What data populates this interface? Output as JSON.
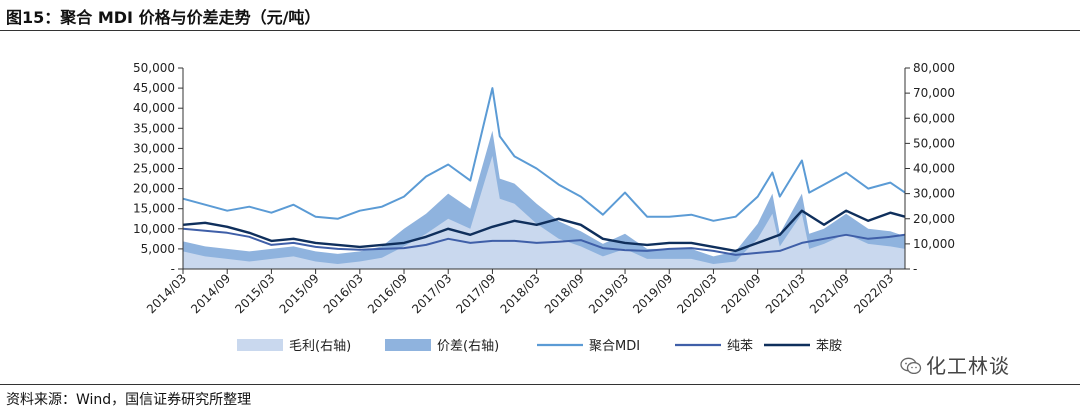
{
  "figure": {
    "title": "图15：聚合 MDI 价格与价差走势（元/吨）",
    "source": "资料来源：Wind，国信证券研究所整理",
    "watermark": "化工林谈",
    "watermark_icon": "wechat-icon"
  },
  "chart_data": {
    "type": "line",
    "left_axis": {
      "ylim": [
        0,
        50000
      ],
      "ticks": [
        "-",
        "5,000",
        "10,000",
        "15,000",
        "20,000",
        "25,000",
        "30,000",
        "35,000",
        "40,000",
        "45,000",
        "50,000"
      ],
      "tick_values": [
        0,
        5000,
        10000,
        15000,
        20000,
        25000,
        30000,
        35000,
        40000,
        45000,
        50000
      ]
    },
    "right_axis": {
      "ylim": [
        0,
        80000
      ],
      "ticks": [
        "-",
        "10,000",
        "20,000",
        "30,000",
        "40,000",
        "50,000",
        "60,000",
        "70,000",
        "80,000"
      ],
      "tick_values": [
        0,
        10000,
        20000,
        30000,
        40000,
        50000,
        60000,
        70000,
        80000
      ]
    },
    "x_ticks": [
      "2014/03",
      "2014/09",
      "2015/03",
      "2015/09",
      "2016/03",
      "2016/09",
      "2017/03",
      "2017/09",
      "2018/03",
      "2018/09",
      "2019/03",
      "2019/09",
      "2020/03",
      "2020/09",
      "2021/03",
      "2021/09",
      "2022/03"
    ],
    "x_range": [
      "2014/03",
      "2022/05"
    ],
    "grid": false,
    "legend_position": "bottom",
    "colors": {
      "margin": "#c9d8ee",
      "spread": "#8fb3de",
      "mdi": "#5b9bd5",
      "benzene": "#3f5fa8",
      "aniline": "#0f2f5c"
    },
    "series": [
      {
        "name": "毛利(右轴)",
        "type": "area",
        "axis": "right",
        "points": [
          [
            "2014/03",
            7000
          ],
          [
            "2014/06",
            5000
          ],
          [
            "2014/09",
            4000
          ],
          [
            "2014/12",
            3000
          ],
          [
            "2015/03",
            4000
          ],
          [
            "2015/06",
            5000
          ],
          [
            "2015/09",
            3000
          ],
          [
            "2015/12",
            2000
          ],
          [
            "2016/03",
            3000
          ],
          [
            "2016/06",
            4500
          ],
          [
            "2016/09",
            9000
          ],
          [
            "2016/12",
            14000
          ],
          [
            "2017/03",
            20000
          ],
          [
            "2017/06",
            16000
          ],
          [
            "2017/09",
            45000
          ],
          [
            "2017/10",
            28000
          ],
          [
            "2017/12",
            26000
          ],
          [
            "2018/03",
            18000
          ],
          [
            "2018/06",
            12000
          ],
          [
            "2018/09",
            9000
          ],
          [
            "2018/12",
            5000
          ],
          [
            "2019/03",
            8000
          ],
          [
            "2019/06",
            4000
          ],
          [
            "2019/09",
            4000
          ],
          [
            "2019/12",
            4000
          ],
          [
            "2020/03",
            2000
          ],
          [
            "2020/06",
            3000
          ],
          [
            "2020/09",
            12000
          ],
          [
            "2020/11",
            22000
          ],
          [
            "2020/12",
            9000
          ],
          [
            "2021/03",
            22000
          ],
          [
            "2021/04",
            8000
          ],
          [
            "2021/06",
            10000
          ],
          [
            "2021/09",
            14000
          ],
          [
            "2021/12",
            10000
          ],
          [
            "2022/03",
            9000
          ],
          [
            "2022/05",
            8000
          ]
        ]
      },
      {
        "name": "价差(右轴)",
        "type": "area",
        "axis": "right",
        "points": [
          [
            "2014/03",
            11000
          ],
          [
            "2014/06",
            9000
          ],
          [
            "2014/09",
            8000
          ],
          [
            "2014/12",
            7000
          ],
          [
            "2015/03",
            8000
          ],
          [
            "2015/06",
            9000
          ],
          [
            "2015/09",
            7000
          ],
          [
            "2015/12",
            6000
          ],
          [
            "2016/03",
            7000
          ],
          [
            "2016/06",
            9000
          ],
          [
            "2016/09",
            16000
          ],
          [
            "2016/12",
            22000
          ],
          [
            "2017/03",
            30000
          ],
          [
            "2017/06",
            24000
          ],
          [
            "2017/09",
            55000
          ],
          [
            "2017/10",
            36000
          ],
          [
            "2017/12",
            34000
          ],
          [
            "2018/03",
            26000
          ],
          [
            "2018/06",
            19000
          ],
          [
            "2018/09",
            15000
          ],
          [
            "2018/12",
            10000
          ],
          [
            "2019/03",
            14000
          ],
          [
            "2019/06",
            8000
          ],
          [
            "2019/09",
            8000
          ],
          [
            "2019/12",
            8000
          ],
          [
            "2020/03",
            5000
          ],
          [
            "2020/06",
            7000
          ],
          [
            "2020/09",
            18000
          ],
          [
            "2020/11",
            30000
          ],
          [
            "2020/12",
            14000
          ],
          [
            "2021/03",
            30000
          ],
          [
            "2021/04",
            14000
          ],
          [
            "2021/06",
            16000
          ],
          [
            "2021/09",
            22000
          ],
          [
            "2021/12",
            16000
          ],
          [
            "2022/03",
            15000
          ],
          [
            "2022/05",
            13000
          ]
        ]
      },
      {
        "name": "聚合MDI",
        "type": "line",
        "axis": "left",
        "points": [
          [
            "2014/03",
            17500
          ],
          [
            "2014/06",
            16000
          ],
          [
            "2014/09",
            14500
          ],
          [
            "2014/12",
            15500
          ],
          [
            "2015/03",
            14000
          ],
          [
            "2015/06",
            16000
          ],
          [
            "2015/09",
            13000
          ],
          [
            "2015/12",
            12500
          ],
          [
            "2016/03",
            14500
          ],
          [
            "2016/06",
            15500
          ],
          [
            "2016/09",
            18000
          ],
          [
            "2016/12",
            23000
          ],
          [
            "2017/03",
            26000
          ],
          [
            "2017/06",
            22000
          ],
          [
            "2017/09",
            45000
          ],
          [
            "2017/10",
            33000
          ],
          [
            "2017/12",
            28000
          ],
          [
            "2018/03",
            25000
          ],
          [
            "2018/06",
            21000
          ],
          [
            "2018/09",
            18000
          ],
          [
            "2018/12",
            13500
          ],
          [
            "2019/03",
            19000
          ],
          [
            "2019/06",
            13000
          ],
          [
            "2019/09",
            13000
          ],
          [
            "2019/12",
            13500
          ],
          [
            "2020/03",
            12000
          ],
          [
            "2020/06",
            13000
          ],
          [
            "2020/09",
            18000
          ],
          [
            "2020/11",
            24000
          ],
          [
            "2020/12",
            18000
          ],
          [
            "2021/03",
            27000
          ],
          [
            "2021/04",
            19000
          ],
          [
            "2021/06",
            21000
          ],
          [
            "2021/09",
            24000
          ],
          [
            "2021/12",
            20000
          ],
          [
            "2022/03",
            21500
          ],
          [
            "2022/05",
            19000
          ]
        ]
      },
      {
        "name": "纯苯",
        "type": "line",
        "axis": "left",
        "points": [
          [
            "2014/03",
            10000
          ],
          [
            "2014/06",
            9500
          ],
          [
            "2014/09",
            9000
          ],
          [
            "2014/12",
            8000
          ],
          [
            "2015/03",
            6000
          ],
          [
            "2015/06",
            6500
          ],
          [
            "2015/09",
            5500
          ],
          [
            "2015/12",
            5000
          ],
          [
            "2016/03",
            4800
          ],
          [
            "2016/06",
            5000
          ],
          [
            "2016/09",
            5200
          ],
          [
            "2016/12",
            6000
          ],
          [
            "2017/03",
            7500
          ],
          [
            "2017/06",
            6500
          ],
          [
            "2017/09",
            7000
          ],
          [
            "2017/12",
            7000
          ],
          [
            "2018/03",
            6500
          ],
          [
            "2018/06",
            6800
          ],
          [
            "2018/09",
            7200
          ],
          [
            "2018/12",
            5200
          ],
          [
            "2019/03",
            4700
          ],
          [
            "2019/06",
            4500
          ],
          [
            "2019/09",
            5000
          ],
          [
            "2019/12",
            5200
          ],
          [
            "2020/03",
            4500
          ],
          [
            "2020/06",
            3500
          ],
          [
            "2020/09",
            4000
          ],
          [
            "2020/12",
            4500
          ],
          [
            "2021/03",
            6500
          ],
          [
            "2021/06",
            7500
          ],
          [
            "2021/09",
            8500
          ],
          [
            "2021/12",
            7500
          ],
          [
            "2022/03",
            8000
          ],
          [
            "2022/05",
            8500
          ]
        ]
      },
      {
        "name": "苯胺",
        "type": "line",
        "axis": "left",
        "points": [
          [
            "2014/03",
            11000
          ],
          [
            "2014/06",
            11500
          ],
          [
            "2014/09",
            10500
          ],
          [
            "2014/12",
            9000
          ],
          [
            "2015/03",
            7000
          ],
          [
            "2015/06",
            7500
          ],
          [
            "2015/09",
            6500
          ],
          [
            "2015/12",
            6000
          ],
          [
            "2016/03",
            5500
          ],
          [
            "2016/06",
            6000
          ],
          [
            "2016/09",
            6500
          ],
          [
            "2016/12",
            8000
          ],
          [
            "2017/03",
            10000
          ],
          [
            "2017/06",
            8500
          ],
          [
            "2017/09",
            10500
          ],
          [
            "2017/12",
            12000
          ],
          [
            "2018/03",
            11000
          ],
          [
            "2018/06",
            12500
          ],
          [
            "2018/09",
            11000
          ],
          [
            "2018/12",
            7500
          ],
          [
            "2019/03",
            6500
          ],
          [
            "2019/06",
            6000
          ],
          [
            "2019/09",
            6500
          ],
          [
            "2019/12",
            6500
          ],
          [
            "2020/03",
            5500
          ],
          [
            "2020/06",
            4500
          ],
          [
            "2020/09",
            6500
          ],
          [
            "2020/12",
            8500
          ],
          [
            "2021/03",
            14500
          ],
          [
            "2021/06",
            11000
          ],
          [
            "2021/09",
            14500
          ],
          [
            "2021/12",
            12000
          ],
          [
            "2022/03",
            14000
          ],
          [
            "2022/05",
            13000
          ]
        ]
      }
    ]
  }
}
